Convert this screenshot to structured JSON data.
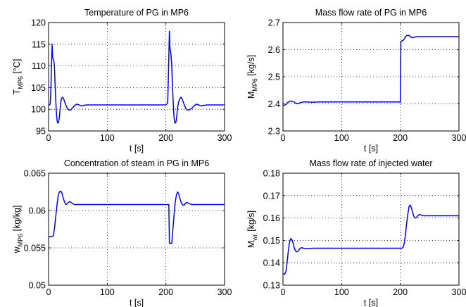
{
  "figure": {
    "series_color": "#0000ff"
  },
  "chart_data": [
    {
      "type": "line",
      "title": "Temperature of PG in MP6",
      "xlabel": "t [s]",
      "ylabel": {
        "main": "T",
        "sub": "MP6",
        "unit": " [°C]"
      },
      "xlim": [
        0,
        300
      ],
      "ylim": [
        95,
        120
      ],
      "xticks": [
        0,
        100,
        200,
        300
      ],
      "yticks": [
        95,
        100,
        105,
        110,
        115,
        120
      ],
      "grid": true,
      "series": [
        {
          "x": [
            0,
            2,
            3,
            4,
            5,
            6,
            7,
            8,
            9,
            10,
            11,
            12,
            13,
            14,
            15,
            16,
            17,
            18,
            19,
            20,
            21,
            22,
            24,
            26,
            28,
            30,
            32,
            34,
            36,
            38,
            40,
            44,
            48,
            52,
            56,
            60,
            65,
            70,
            100,
            150,
            200,
            203,
            204,
            205,
            206,
            207,
            208,
            209,
            210,
            211,
            212,
            213,
            214,
            215,
            216,
            217,
            218,
            219,
            220,
            222,
            224,
            226,
            228,
            230,
            232,
            234,
            236,
            238,
            240,
            244,
            248,
            252,
            256,
            260,
            265,
            270,
            300
          ],
          "y": [
            101,
            101,
            101.5,
            105,
            110,
            115,
            112,
            111.5,
            111,
            110,
            106,
            103,
            100,
            98,
            97,
            96.8,
            97,
            97.8,
            99,
            100.5,
            101.8,
            102.5,
            102.8,
            102.3,
            101.5,
            100.8,
            100.2,
            99.9,
            99.8,
            99.9,
            100.2,
            100.8,
            101.2,
            101,
            100.8,
            100.9,
            101,
            101,
            101,
            101,
            101,
            101.5,
            106,
            112,
            118,
            114,
            113.5,
            112,
            110,
            106,
            103,
            100,
            98,
            97,
            96.8,
            97,
            97.8,
            99,
            100.5,
            101.8,
            102.5,
            102.8,
            102.3,
            101.5,
            100.8,
            100.2,
            99.9,
            99.8,
            99.9,
            100.2,
            100.8,
            101.2,
            101,
            100.8,
            100.9,
            101,
            101
          ]
        }
      ]
    },
    {
      "type": "line",
      "title": "Mass flow rate of PG in MP6",
      "xlabel": "t [s]",
      "ylabel": {
        "main": "M",
        "sub": "MP6",
        "unit": " [kg/s]"
      },
      "xlim": [
        0,
        300
      ],
      "ylim": [
        2.3,
        2.7
      ],
      "xticks": [
        0,
        100,
        200,
        300
      ],
      "yticks": [
        2.3,
        2.4,
        2.5,
        2.6,
        2.7
      ],
      "grid": true,
      "series": [
        {
          "x": [
            0,
            3,
            5,
            8,
            12,
            15,
            18,
            21,
            24,
            28,
            32,
            36,
            40,
            50,
            60,
            100,
            150,
            199,
            200,
            201,
            203,
            205,
            207,
            209,
            211,
            213,
            215,
            217,
            219,
            221,
            223,
            225,
            230,
            240,
            250,
            300
          ],
          "y": [
            2.395,
            2.395,
            2.398,
            2.405,
            2.41,
            2.41,
            2.408,
            2.403,
            2.401,
            2.403,
            2.406,
            2.407,
            2.407,
            2.406,
            2.407,
            2.407,
            2.407,
            2.407,
            2.405,
            2.63,
            2.633,
            2.635,
            2.64,
            2.648,
            2.652,
            2.653,
            2.652,
            2.648,
            2.645,
            2.644,
            2.645,
            2.647,
            2.648,
            2.648,
            2.648,
            2.648
          ]
        }
      ]
    },
    {
      "type": "line",
      "title": "Concentration of steam in PG in MP6",
      "xlabel": "t [s]",
      "ylabel": {
        "main": "w",
        "sub": "MP6",
        "unit": " [kg/kg]"
      },
      "xlim": [
        0,
        300
      ],
      "ylim": [
        0.05,
        0.065
      ],
      "xticks": [
        0,
        100,
        200,
        300
      ],
      "yticks": [
        0.05,
        0.055,
        0.06,
        0.065
      ],
      "grid": true,
      "series": [
        {
          "x": [
            0,
            5,
            8,
            10,
            12,
            14,
            16,
            18,
            20,
            22,
            24,
            26,
            28,
            30,
            32,
            34,
            36,
            38,
            40,
            44,
            48,
            52,
            56,
            60,
            70,
            100,
            150,
            205,
            206,
            207,
            208,
            210,
            212,
            214,
            216,
            218,
            220,
            222,
            224,
            226,
            228,
            230,
            232,
            234,
            236,
            238,
            240,
            244,
            248,
            252,
            256,
            260,
            270,
            300
          ],
          "y": [
            0.0565,
            0.0565,
            0.0566,
            0.0575,
            0.059,
            0.0605,
            0.0618,
            0.0624,
            0.0626,
            0.0625,
            0.062,
            0.0614,
            0.061,
            0.0608,
            0.0609,
            0.0611,
            0.0612,
            0.0611,
            0.061,
            0.0608,
            0.0608,
            0.0608,
            0.0608,
            0.0608,
            0.0608,
            0.0608,
            0.0608,
            0.0608,
            0.0556,
            0.0556,
            0.0556,
            0.0556,
            0.0575,
            0.0595,
            0.0612,
            0.0621,
            0.0625,
            0.0622,
            0.0616,
            0.0611,
            0.0608,
            0.0607,
            0.0608,
            0.061,
            0.0611,
            0.061,
            0.0609,
            0.0608,
            0.0608,
            0.0608,
            0.0608,
            0.0608,
            0.0608,
            0.0608
          ]
        }
      ]
    },
    {
      "type": "line",
      "title": "Mass flow rate of injected water",
      "xlabel": "t [s]",
      "ylabel": {
        "main": "M",
        "sub": "wr",
        "unit": " [kg/s]"
      },
      "xlim": [
        0,
        300
      ],
      "ylim": [
        0.13,
        0.18
      ],
      "xticks": [
        0,
        100,
        200,
        300
      ],
      "yticks": [
        0.13,
        0.14,
        0.15,
        0.16,
        0.17,
        0.18
      ],
      "grid": true,
      "series": [
        {
          "x": [
            0,
            3,
            5,
            7,
            9,
            11,
            13,
            15,
            17,
            19,
            21,
            23,
            25,
            27,
            29,
            31,
            33,
            35,
            37,
            40,
            45,
            50,
            55,
            60,
            100,
            150,
            203,
            205,
            207,
            209,
            211,
            213,
            215,
            217,
            219,
            221,
            223,
            225,
            227,
            229,
            231,
            233,
            235,
            237,
            240,
            245,
            250,
            255,
            260,
            300
          ],
          "y": [
            0.135,
            0.135,
            0.136,
            0.14,
            0.145,
            0.149,
            0.1508,
            0.1505,
            0.149,
            0.147,
            0.1455,
            0.1449,
            0.145,
            0.1457,
            0.1464,
            0.1467,
            0.1467,
            0.1465,
            0.1463,
            0.1463,
            0.1464,
            0.1465,
            0.1465,
            0.1465,
            0.1465,
            0.1465,
            0.1465,
            0.147,
            0.149,
            0.153,
            0.158,
            0.162,
            0.1652,
            0.1658,
            0.1645,
            0.1625,
            0.1608,
            0.16,
            0.1601,
            0.1607,
            0.1613,
            0.1615,
            0.1614,
            0.1612,
            0.161,
            0.161,
            0.161,
            0.161,
            0.161,
            0.161
          ]
        }
      ]
    }
  ]
}
